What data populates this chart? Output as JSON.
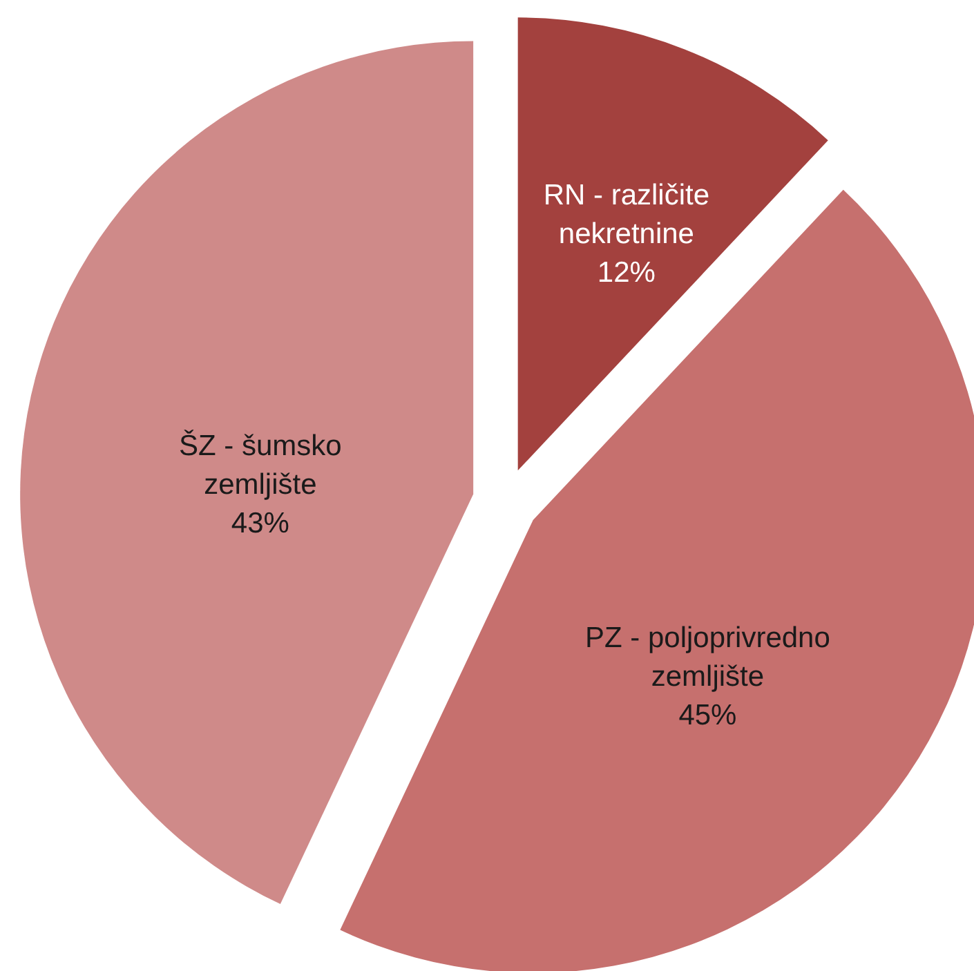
{
  "chart_data": {
    "type": "pie",
    "categories": [
      "RN - različite nekretnine",
      "PZ - poljoprivredno zemljište",
      "ŠZ - šumsko zemljište"
    ],
    "values": [
      12,
      45,
      43
    ],
    "value_labels": [
      "12%",
      "45%",
      "43%"
    ],
    "colors": [
      "#a3413e",
      "#c6706e",
      "#cf8a89"
    ]
  }
}
